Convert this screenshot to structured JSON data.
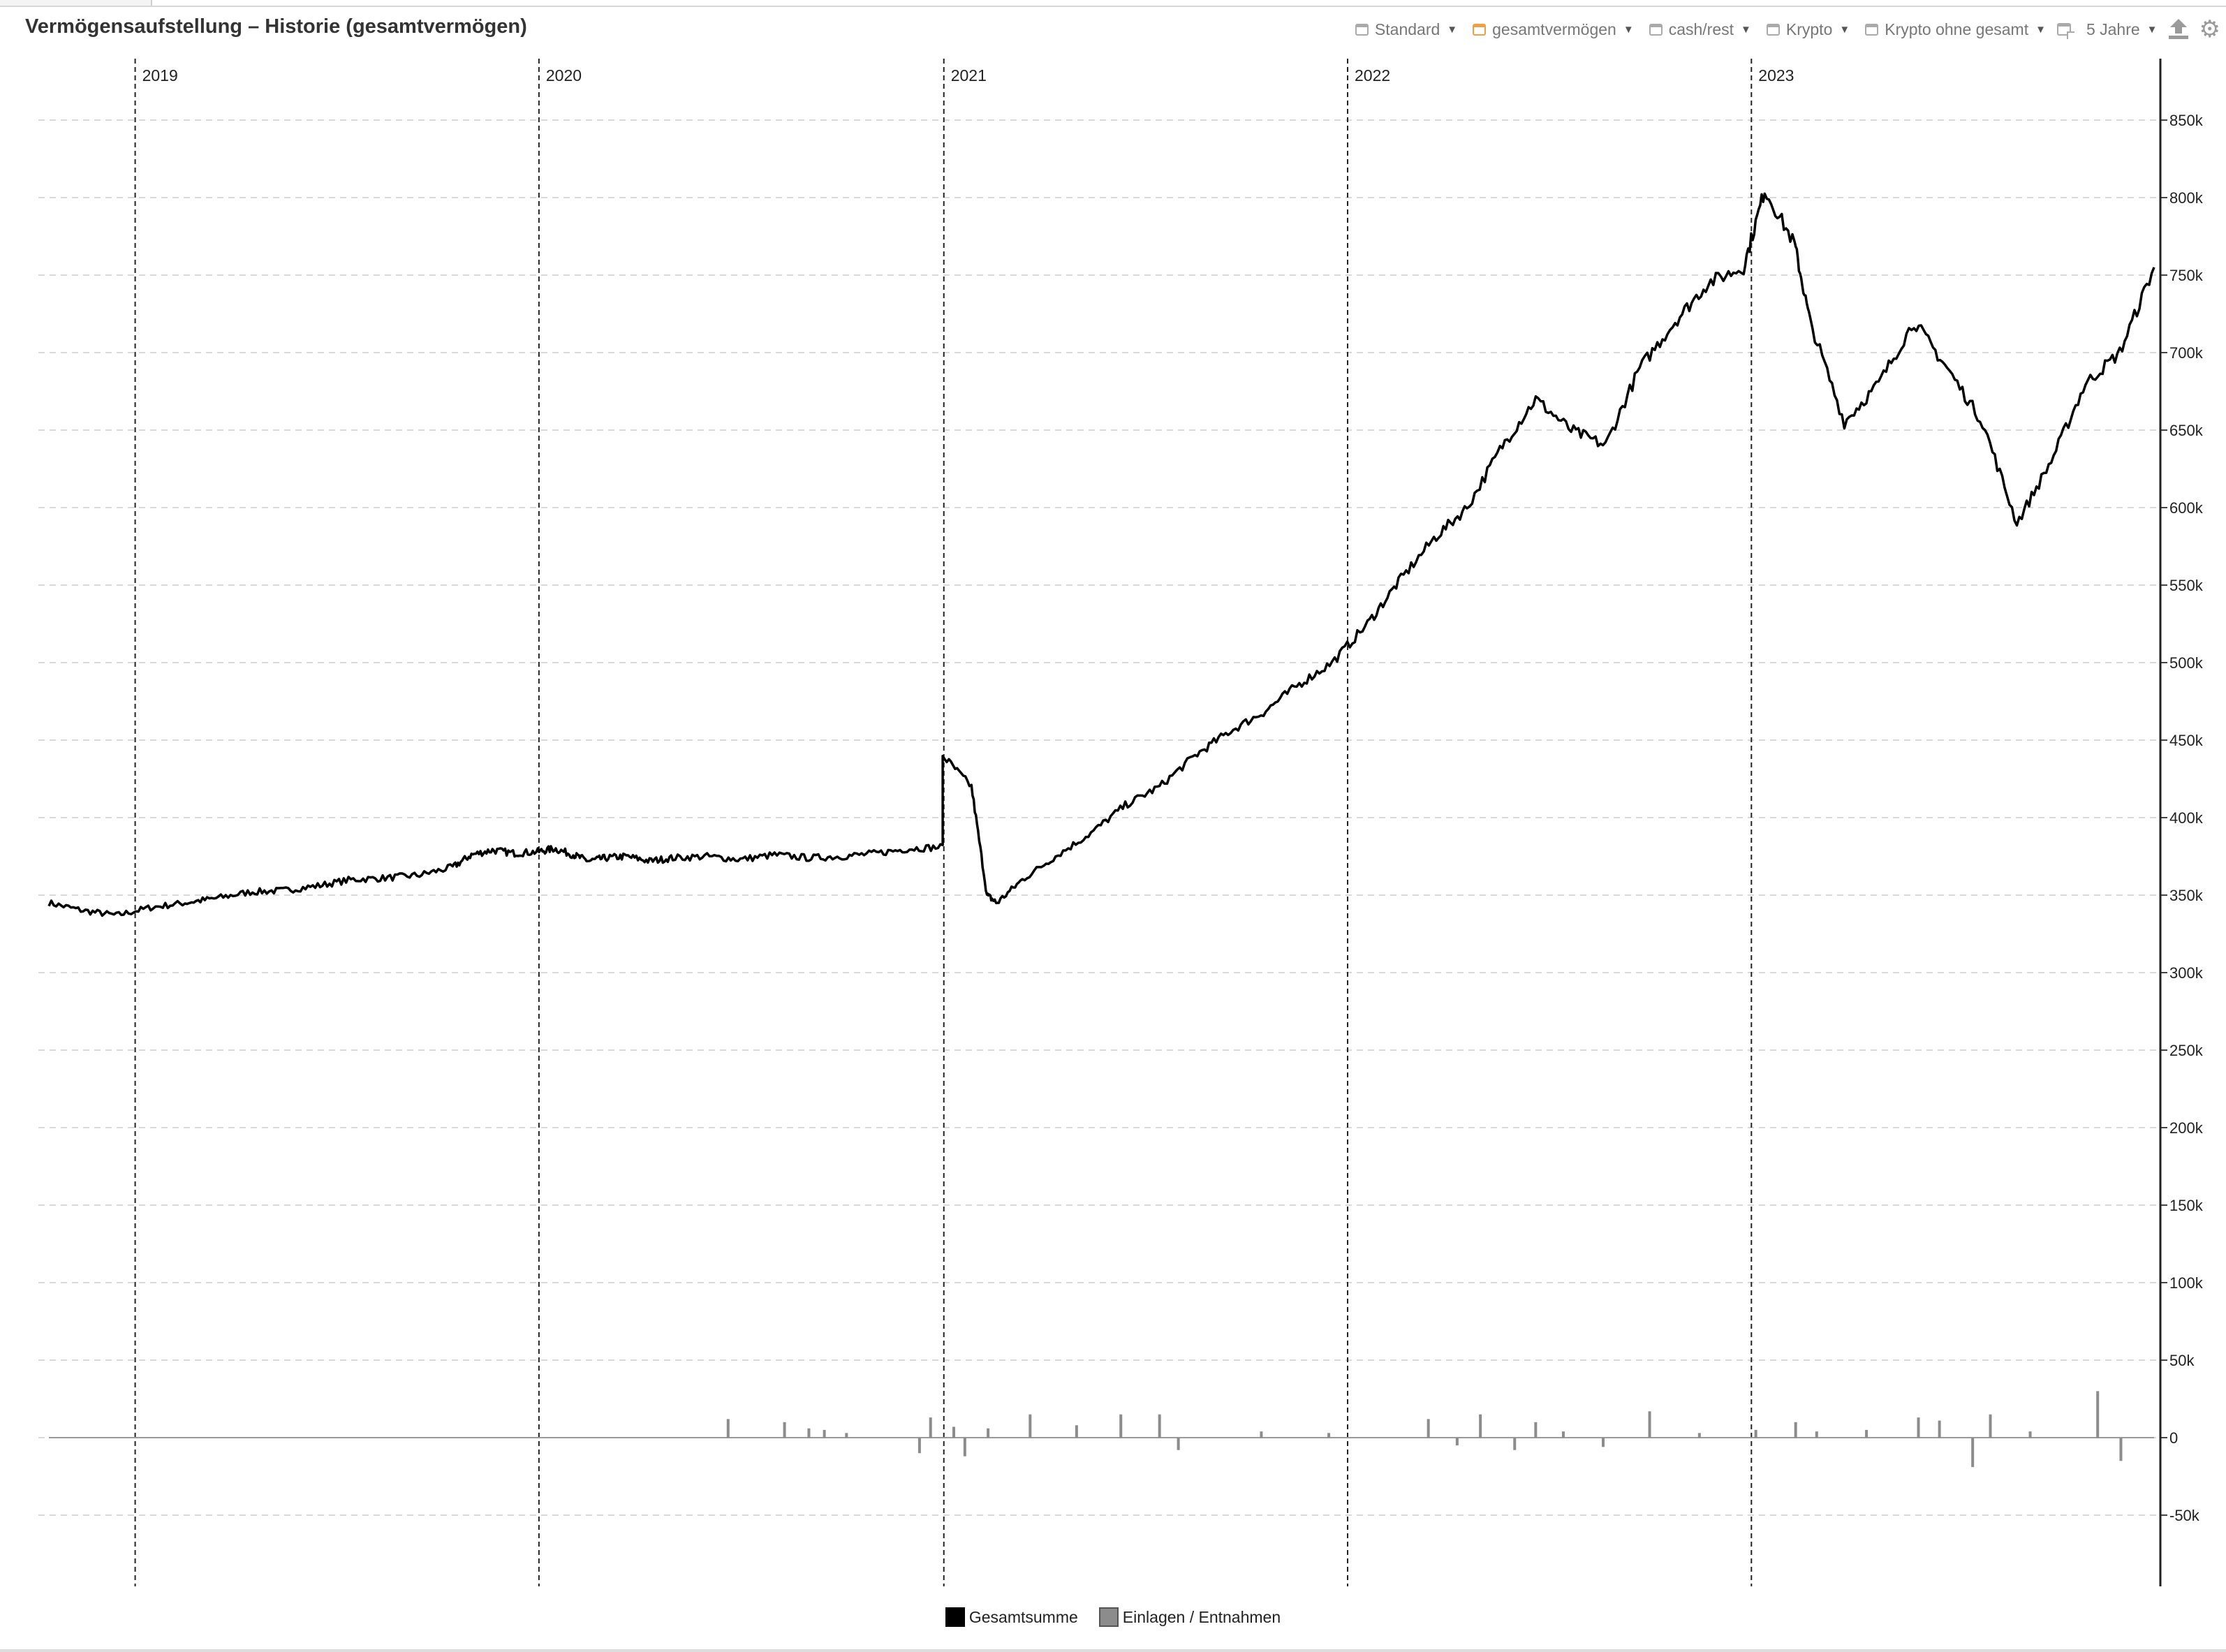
{
  "title": "Vermögensaufstellung – Historie (gesamtvermögen)",
  "toolbar": {
    "items": [
      {
        "label": "Standard",
        "checked": false
      },
      {
        "label": "gesamtvermögen",
        "checked": true
      },
      {
        "label": "cash/rest",
        "checked": false
      },
      {
        "label": "Krypto",
        "checked": false
      },
      {
        "label": "Krypto ohne gesamt",
        "checked": false
      }
    ],
    "range_label": "5 Jahre",
    "icons": [
      "add-window-icon",
      "upload-icon",
      "gear-icon"
    ]
  },
  "colors": {
    "line": "#000000",
    "bars": "#8c8c8c",
    "grid": "#d9d9d9",
    "year_lines": "#222222",
    "checkbox_active": "#f0a040"
  },
  "chart_data": {
    "type": "line",
    "x_axis": {
      "type": "date",
      "range": [
        "2018-10-15",
        "2023-12-31"
      ],
      "year_markers": [
        "2019",
        "2020",
        "2021",
        "2022",
        "2023"
      ],
      "year_marker_dates": [
        "2019-01-01",
        "2020-01-01",
        "2021-01-01",
        "2022-01-01",
        "2023-01-01"
      ]
    },
    "y_axis": {
      "position": "right",
      "range": [
        -100000,
        900000
      ],
      "ticks": [
        -50000,
        0,
        50000,
        100000,
        150000,
        200000,
        250000,
        300000,
        350000,
        400000,
        450000,
        500000,
        550000,
        600000,
        650000,
        700000,
        750000,
        800000,
        850000
      ],
      "tick_labels": [
        "-50k",
        "0",
        "50k",
        "100k",
        "150k",
        "200k",
        "250k",
        "300k",
        "350k",
        "400k",
        "450k",
        "500k",
        "550k",
        "600k",
        "650k",
        "700k",
        "750k",
        "800k",
        "850k"
      ]
    },
    "grid": {
      "horizontal": true,
      "style": "dashed"
    },
    "legend": {
      "position": "bottom-center",
      "entries": [
        "Gesamtsumme",
        "Einlagen / Entnahmen"
      ]
    },
    "series": [
      {
        "name": "Gesamtsumme",
        "type": "line",
        "points": [
          [
            "2018-10-15",
            345000
          ],
          [
            "2018-11-15",
            340000
          ],
          [
            "2018-12-15",
            337000
          ],
          [
            "2019-01-15",
            342000
          ],
          [
            "2019-02-15",
            345000
          ],
          [
            "2019-03-15",
            348000
          ],
          [
            "2019-04-15",
            352000
          ],
          [
            "2019-05-15",
            353000
          ],
          [
            "2019-06-15",
            356000
          ],
          [
            "2019-07-15",
            360000
          ],
          [
            "2019-08-15",
            361000
          ],
          [
            "2019-09-15",
            363000
          ],
          [
            "2019-10-15",
            368000
          ],
          [
            "2019-11-01",
            376000
          ],
          [
            "2019-11-20",
            379000
          ],
          [
            "2019-12-10",
            377000
          ],
          [
            "2019-12-31",
            378000
          ],
          [
            "2020-01-15",
            380000
          ],
          [
            "2020-02-01",
            376000
          ],
          [
            "2020-02-15",
            372000
          ],
          [
            "2020-03-01",
            374000
          ],
          [
            "2020-03-20",
            375000
          ],
          [
            "2020-04-10",
            372000
          ],
          [
            "2020-05-01",
            374000
          ],
          [
            "2020-06-01",
            375000
          ],
          [
            "2020-07-01",
            373000
          ],
          [
            "2020-08-01",
            376000
          ],
          [
            "2020-09-01",
            374000
          ],
          [
            "2020-10-01",
            375000
          ],
          [
            "2020-11-01",
            377000
          ],
          [
            "2020-12-01",
            380000
          ],
          [
            "2020-12-31",
            381000
          ]
        ]
      },
      {
        "name": "Einlagen / Entnahmen",
        "type": "bar",
        "points": [
          [
            "2020-06-20",
            12000
          ],
          [
            "2020-08-10",
            10000
          ],
          [
            "2020-09-01",
            6000
          ],
          [
            "2020-09-15",
            5000
          ],
          [
            "2020-10-05",
            3000
          ],
          [
            "2020-12-10",
            -10000
          ],
          [
            "2020-12-20",
            13000
          ],
          [
            "2021-01-10",
            7000
          ],
          [
            "2021-01-20",
            -12000
          ],
          [
            "2021-02-10",
            6000
          ],
          [
            "2021-03-20",
            15000
          ],
          [
            "2021-05-01",
            8000
          ],
          [
            "2021-06-10",
            15000
          ],
          [
            "2021-07-15",
            15000
          ],
          [
            "2021-08-01",
            -8000
          ],
          [
            "2021-10-15",
            4000
          ],
          [
            "2021-12-15",
            3000
          ],
          [
            "2022-03-15",
            12000
          ],
          [
            "2022-04-10",
            -5000
          ],
          [
            "2022-05-01",
            15000
          ],
          [
            "2022-06-01",
            -8000
          ],
          [
            "2022-06-20",
            10000
          ],
          [
            "2022-07-15",
            4000
          ],
          [
            "2022-08-20",
            -6000
          ],
          [
            "2022-10-01",
            17000
          ],
          [
            "2022-11-15",
            3000
          ],
          [
            "2023-01-05",
            5000
          ],
          [
            "2023-02-10",
            10000
          ],
          [
            "2023-03-01",
            4000
          ],
          [
            "2023-04-15",
            5000
          ],
          [
            "2023-06-01",
            13000
          ],
          [
            "2023-06-20",
            11000
          ],
          [
            "2023-07-20",
            -19000
          ],
          [
            "2023-08-05",
            15000
          ],
          [
            "2023-09-10",
            4000
          ],
          [
            "2023-11-10",
            30000
          ],
          [
            "2023-12-01",
            -15000
          ]
        ]
      }
    ]
  }
}
